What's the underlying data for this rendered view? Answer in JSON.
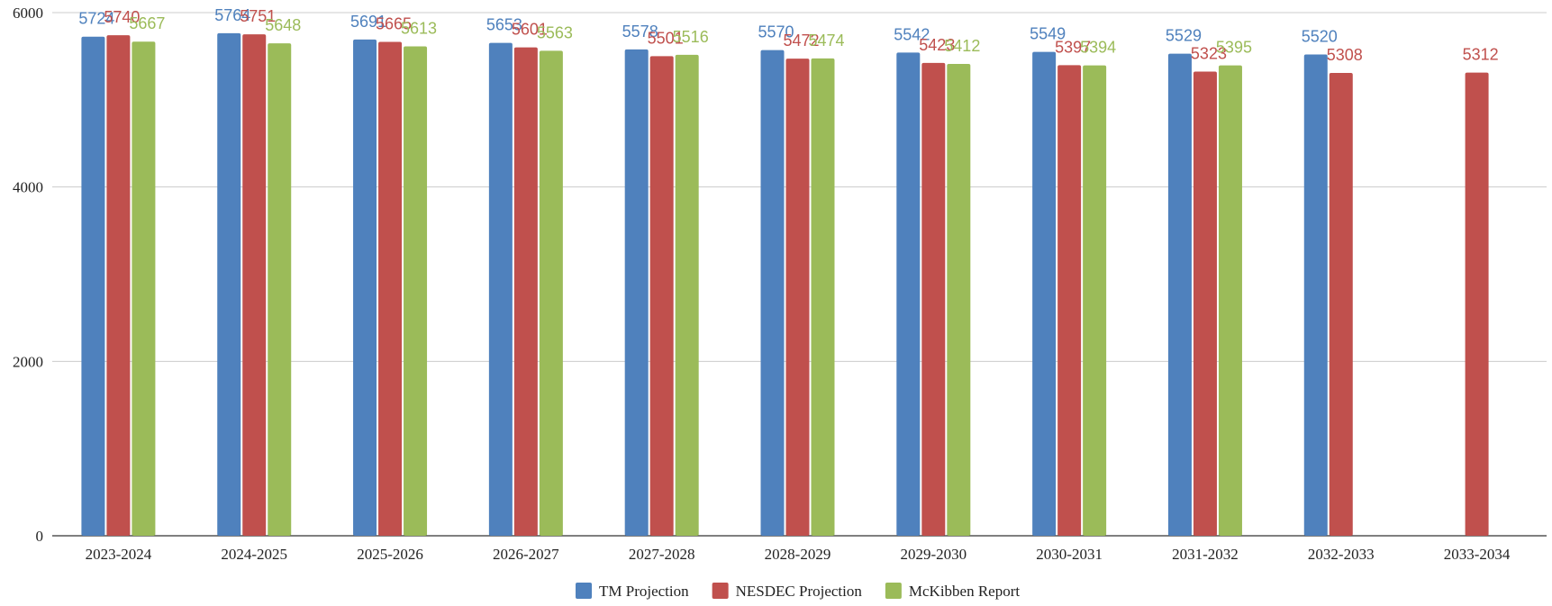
{
  "chart_data": {
    "type": "bar",
    "categories": [
      "2023-2024",
      "2024-2025",
      "2025-2026",
      "2026-2027",
      "2027-2028",
      "2028-2029",
      "2029-2030",
      "2030-2031",
      "2031-2032",
      "2032-2033",
      "2033-2034"
    ],
    "series": [
      {
        "name": "TM Projection",
        "color": "#4f81bd",
        "values": [
          5724,
          5764,
          5691,
          5653,
          5578,
          5570,
          5542,
          5549,
          5529,
          5520,
          null
        ]
      },
      {
        "name": "NESDEC Projection",
        "color": "#c0504d",
        "values": [
          5740,
          5751,
          5665,
          5601,
          5501,
          5472,
          5423,
          5397,
          5323,
          5308,
          5312
        ]
      },
      {
        "name": "McKibben Report",
        "color": "#9bbb59",
        "values": [
          5667,
          5648,
          5613,
          5563,
          5516,
          5474,
          5412,
          5394,
          5395,
          null,
          null
        ]
      }
    ],
    "yticks": [
      0,
      2000,
      4000,
      6000
    ],
    "ylim": [
      0,
      6000
    ],
    "grid": true,
    "legend": "bottom-center",
    "title": "",
    "xlabel": "",
    "ylabel": ""
  }
}
